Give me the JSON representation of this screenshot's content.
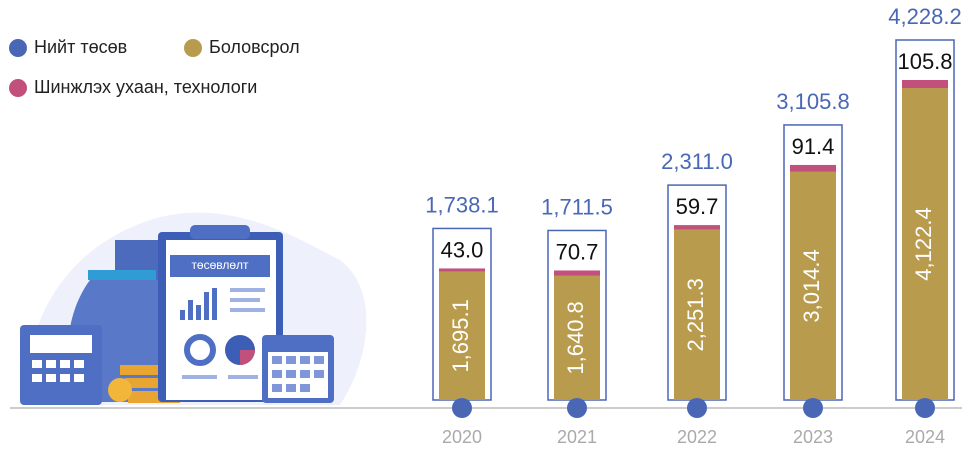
{
  "chart_data": {
    "type": "stacked-bar",
    "categories": [
      "2020",
      "2021",
      "2022",
      "2023",
      "2024"
    ],
    "series": [
      {
        "name": "Нийт төсөв",
        "color": "#4a67b5",
        "values": [
          1738.1,
          1711.5,
          2311.0,
          3105.8,
          4228.2
        ],
        "value_labels": [
          "1,738.1",
          "1,711.5",
          "2,311.0",
          "3,105.8",
          "4,228.2"
        ]
      },
      {
        "name": "Боловсрол",
        "color": "#b89b4c",
        "values": [
          1695.1,
          1640.8,
          2251.3,
          3014.4,
          4122.4
        ],
        "value_labels": [
          "1,695.1",
          "1,640.8",
          "2,251.3",
          "3,014.4",
          "4,122.4"
        ]
      },
      {
        "name": "Шинжлэх ухаан, технологи",
        "color": "#c2507d",
        "values": [
          43.0,
          70.7,
          59.7,
          91.4,
          105.8
        ],
        "value_labels": [
          "43.0",
          "70.7",
          "59.7",
          "91.4",
          "105.8"
        ]
      }
    ],
    "annotations": [
      "төсөвлөлт"
    ]
  }
}
